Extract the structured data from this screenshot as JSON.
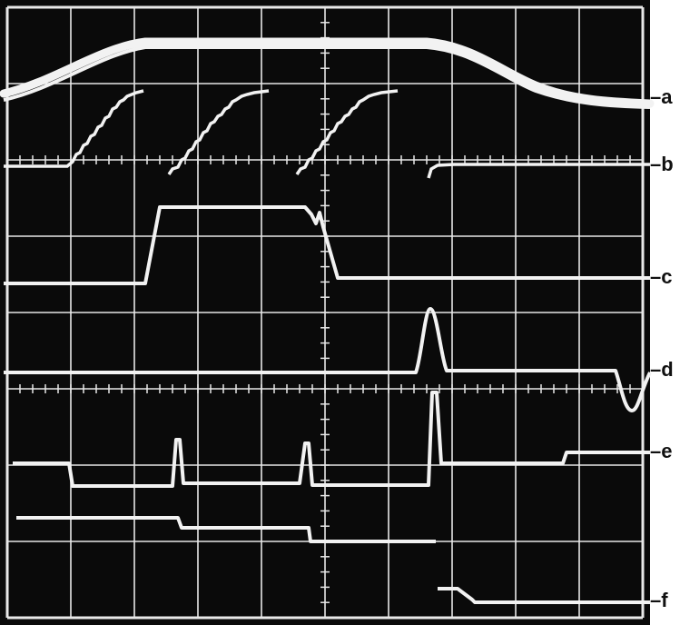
{
  "screen": {
    "background": "#0a0a0a",
    "grid_color": "#e8e8e8",
    "trace_color": "#f2f2f2",
    "graticule": {
      "columns": 10,
      "rows": 8,
      "minor_ticks_per_division": 5
    }
  },
  "trace_labels": [
    {
      "id": "a",
      "text": "a"
    },
    {
      "id": "b",
      "text": "b"
    },
    {
      "id": "c",
      "text": "c"
    },
    {
      "id": "d",
      "text": "d"
    },
    {
      "id": "e",
      "text": "e"
    },
    {
      "id": "f",
      "text": "f"
    }
  ]
}
